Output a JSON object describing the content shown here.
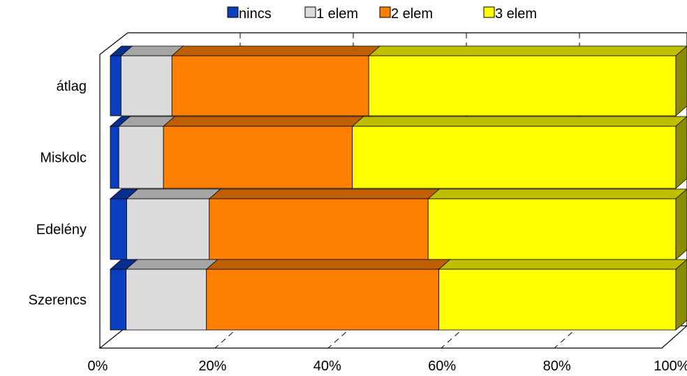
{
  "chart_data": {
    "type": "bar",
    "orientation": "horizontal",
    "stacked": "percent",
    "three_d": true,
    "categories": [
      "átlag",
      "Miskolc",
      "Edelény",
      "Szerencs"
    ],
    "series": [
      {
        "name": "nincs",
        "color": "#0a3fbf",
        "values": [
          1.9,
          1.5,
          2.9,
          2.8
        ]
      },
      {
        "name": "1 elem",
        "color": "#dcdcdc",
        "values": [
          9.0,
          7.9,
          14.6,
          14.2
        ]
      },
      {
        "name": "2 elem",
        "color": "#ff8000",
        "values": [
          34.8,
          33.4,
          38.7,
          41.1
        ]
      },
      {
        "name": "3 elem",
        "color": "#ffff00",
        "values": [
          54.3,
          57.2,
          43.8,
          41.9
        ]
      }
    ],
    "x_ticks": [
      "0%",
      "20%",
      "40%",
      "60%",
      "80%",
      "100%"
    ],
    "xlim": [
      0,
      100
    ],
    "grid": true,
    "legend_position": "top"
  }
}
